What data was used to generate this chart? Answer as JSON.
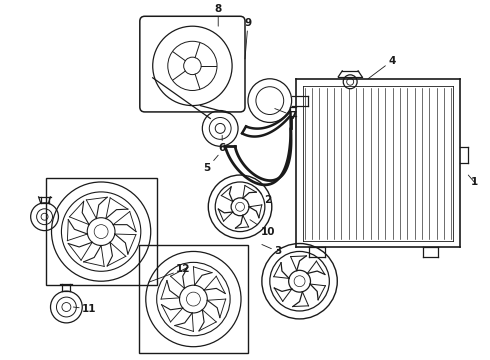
{
  "bg_color": "#ffffff",
  "line_color": "#1a1a1a",
  "fig_width": 4.9,
  "fig_height": 3.6,
  "dpi": 100,
  "label_fontsize": 7.5,
  "arrow_lw": 0.6,
  "component_lw": 0.9
}
